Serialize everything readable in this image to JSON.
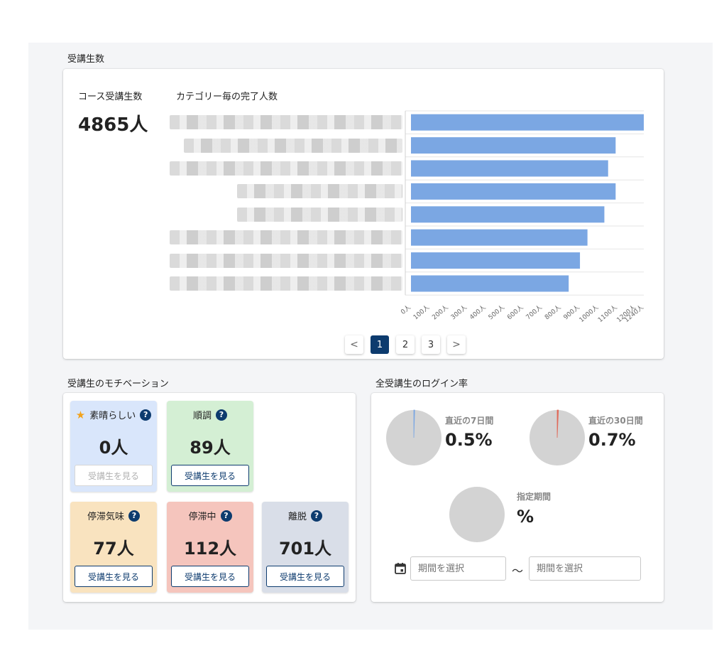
{
  "sections": {
    "students_title": "受講生数",
    "motivation_title": "受講生のモチベーション",
    "login_title": "全受講生のログイン率"
  },
  "course": {
    "label": "コース受講生数",
    "total": "4865人"
  },
  "chart_data": {
    "type": "bar",
    "orientation": "horizontal",
    "title": "カテゴリー毎の完了人数",
    "categories": [
      "",
      "",
      "",
      "",
      "",
      "",
      "",
      ""
    ],
    "values": [
      1240,
      1090,
      1050,
      1090,
      1030,
      940,
      900,
      840
    ],
    "xlim": [
      0,
      1240
    ],
    "ticks": [
      0,
      100,
      200,
      300,
      400,
      500,
      600,
      700,
      800,
      900,
      1000,
      1100,
      1200,
      1240
    ],
    "tick_labels": [
      "0人",
      "100人",
      "200人",
      "300人",
      "400人",
      "500人",
      "600人",
      "700人",
      "800人",
      "900人",
      "1000人",
      "1100人",
      "1200人",
      "1240人"
    ],
    "color": "#7ba7e3",
    "grid": true
  },
  "pagination": {
    "prev": "<",
    "next": ">",
    "pages": [
      "1",
      "2",
      "3"
    ],
    "current": "1"
  },
  "motivation": {
    "tiles": [
      {
        "key": "great",
        "label": "素晴らしい",
        "value": "0人",
        "button": "受講生を見る",
        "bg": "#d9e6fb",
        "star": true,
        "disabled": true
      },
      {
        "key": "good",
        "label": "順調",
        "value": "89人",
        "button": "受講生を見る",
        "bg": "#d4efd4"
      },
      {
        "key": "stagnating",
        "label": "停滞気味",
        "value": "77人",
        "button": "受講生を見る",
        "bg": "#f9e3bf"
      },
      {
        "key": "stalled",
        "label": "停滞中",
        "value": "112人",
        "button": "受講生を見る",
        "bg": "#f5c5bd"
      },
      {
        "key": "dropout",
        "label": "離脱",
        "value": "701人",
        "button": "受講生を見る",
        "bg": "#d9dee8"
      }
    ],
    "help_icon": "question-circle-icon",
    "star_icon": "star-icon"
  },
  "login": {
    "pies": [
      {
        "key": "7days",
        "label": "直近の7日間",
        "value": "0.5%",
        "fraction": 0.005,
        "accent": "#7ba7e3"
      },
      {
        "key": "30days",
        "label": "直近の30日間",
        "value": "0.7%",
        "fraction": 0.007,
        "accent": "#e06a5a"
      },
      {
        "key": "period",
        "label": "指定期間",
        "value": "%",
        "fraction": 0
      }
    ],
    "pie_color": "#d3d3d3",
    "date_from_placeholder": "期間を選択",
    "date_to_placeholder": "期間を選択",
    "range_separator": "〜",
    "calendar_icon": "calendar-icon"
  }
}
